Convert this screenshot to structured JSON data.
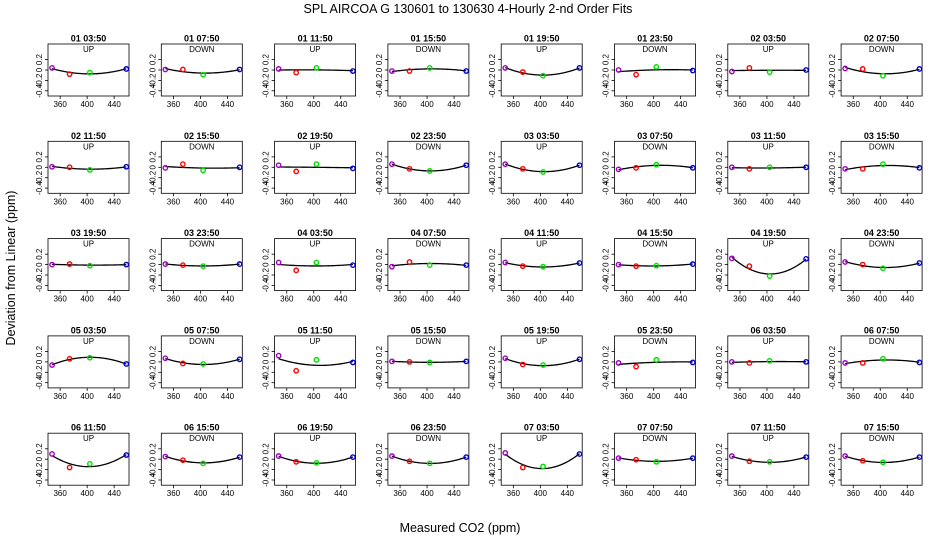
{
  "header": {
    "title": "SPL   AIRCOA G   130601 to 130630   4-Hourly 2-nd Order Fits"
  },
  "chart_data": {
    "type": "scatter",
    "xlabel": "Measured CO2 (ppm)",
    "ylabel": "Deviation from Linear (ppm)",
    "xlim": [
      342,
      462
    ],
    "ylim": [
      -0.5,
      0.5
    ],
    "xticks": [
      360,
      400,
      440
    ],
    "yticks": [
      -0.4,
      -0.2,
      0,
      0.2
    ],
    "grid": false,
    "point_colors": [
      "#a000c0",
      "#ff0000",
      "#00dd00",
      "#0000cc"
    ],
    "point_x": [
      348,
      374,
      404,
      458
    ],
    "panels": [
      {
        "title": "01 03:50",
        "mode": "UP",
        "points": [
          0.04,
          -0.08,
          -0.05,
          0.02
        ]
      },
      {
        "title": "01 07:50",
        "mode": "DOWN",
        "points": [
          0.01,
          0.01,
          -0.09,
          0.01
        ]
      },
      {
        "title": "01 11:50",
        "mode": "UP",
        "points": [
          0.02,
          -0.05,
          0.04,
          -0.02
        ]
      },
      {
        "title": "01 15:50",
        "mode": "DOWN",
        "points": [
          -0.02,
          -0.02,
          0.04,
          -0.02
        ]
      },
      {
        "title": "01 19:50",
        "mode": "UP",
        "points": [
          0.04,
          -0.04,
          -0.11,
          0.04
        ]
      },
      {
        "title": "01 23:50",
        "mode": "DOWN",
        "points": [
          0.0,
          -0.09,
          0.06,
          -0.01
        ]
      },
      {
        "title": "02 03:50",
        "mode": "UP",
        "points": [
          -0.03,
          0.04,
          -0.04,
          0.0
        ]
      },
      {
        "title": "02 07:50",
        "mode": "DOWN",
        "points": [
          0.03,
          0.02,
          -0.11,
          0.02
        ]
      },
      {
        "title": "02 11:50",
        "mode": "UP",
        "points": [
          0.01,
          0.0,
          -0.05,
          0.01
        ]
      },
      {
        "title": "02 15:50",
        "mode": "DOWN",
        "points": [
          -0.01,
          0.06,
          -0.06,
          0.0
        ]
      },
      {
        "title": "02 19:50",
        "mode": "UP",
        "points": [
          0.04,
          -0.08,
          0.06,
          -0.02
        ]
      },
      {
        "title": "02 23:50",
        "mode": "DOWN",
        "points": [
          0.06,
          -0.03,
          -0.07,
          0.04
        ]
      },
      {
        "title": "03 03:50",
        "mode": "UP",
        "points": [
          0.06,
          -0.03,
          -0.09,
          0.04
        ]
      },
      {
        "title": "03 07:50",
        "mode": "DOWN",
        "points": [
          -0.04,
          -0.01,
          0.05,
          -0.01
        ]
      },
      {
        "title": "03 11:50",
        "mode": "UP",
        "points": [
          0.0,
          -0.03,
          0.0,
          0.0
        ]
      },
      {
        "title": "03 15:50",
        "mode": "DOWN",
        "points": [
          -0.03,
          -0.03,
          0.06,
          -0.01
        ]
      },
      {
        "title": "03 19:50",
        "mode": "UP",
        "points": [
          0.0,
          0.01,
          -0.02,
          0.0
        ]
      },
      {
        "title": "03 23:50",
        "mode": "DOWN",
        "points": [
          0.01,
          -0.01,
          -0.03,
          0.01
        ]
      },
      {
        "title": "04 03:50",
        "mode": "UP",
        "points": [
          0.04,
          -0.11,
          0.04,
          -0.01
        ]
      },
      {
        "title": "04 07:50",
        "mode": "DOWN",
        "points": [
          -0.04,
          0.05,
          -0.01,
          -0.01
        ]
      },
      {
        "title": "04 11:50",
        "mode": "UP",
        "points": [
          0.04,
          -0.03,
          -0.04,
          0.03
        ]
      },
      {
        "title": "04 15:50",
        "mode": "DOWN",
        "points": [
          0.0,
          -0.03,
          -0.02,
          0.01
        ]
      },
      {
        "title": "04 19:50",
        "mode": "UP",
        "points": [
          0.12,
          -0.03,
          -0.22,
          0.11
        ]
      },
      {
        "title": "04 23:50",
        "mode": "DOWN",
        "points": [
          0.05,
          0.0,
          -0.07,
          0.03
        ]
      },
      {
        "title": "05 03:50",
        "mode": "UP",
        "points": [
          -0.06,
          0.06,
          0.08,
          -0.04
        ]
      },
      {
        "title": "05 07:50",
        "mode": "DOWN",
        "points": [
          0.07,
          -0.03,
          -0.04,
          0.05
        ]
      },
      {
        "title": "05 11:50",
        "mode": "UP",
        "points": [
          0.12,
          -0.17,
          0.04,
          -0.01
        ]
      },
      {
        "title": "05 15:50",
        "mode": "DOWN",
        "points": [
          0.01,
          0.0,
          -0.01,
          0.01
        ]
      },
      {
        "title": "05 19:50",
        "mode": "UP",
        "points": [
          0.07,
          -0.05,
          -0.06,
          0.05
        ]
      },
      {
        "title": "05 23:50",
        "mode": "DOWN",
        "points": [
          -0.02,
          -0.09,
          0.04,
          -0.01
        ]
      },
      {
        "title": "06 03:50",
        "mode": "UP",
        "points": [
          0.0,
          -0.02,
          0.02,
          0.0
        ]
      },
      {
        "title": "06 07:50",
        "mode": "DOWN",
        "points": [
          -0.02,
          -0.02,
          0.06,
          -0.01
        ]
      },
      {
        "title": "06 11:50",
        "mode": "UP",
        "points": [
          0.1,
          -0.16,
          -0.09,
          0.08
        ]
      },
      {
        "title": "06 15:50",
        "mode": "DOWN",
        "points": [
          0.05,
          -0.02,
          -0.08,
          0.04
        ]
      },
      {
        "title": "06 19:50",
        "mode": "UP",
        "points": [
          0.06,
          -0.05,
          -0.07,
          0.04
        ]
      },
      {
        "title": "06 23:50",
        "mode": "DOWN",
        "points": [
          0.06,
          -0.04,
          -0.08,
          0.04
        ]
      },
      {
        "title": "07 03:50",
        "mode": "UP",
        "points": [
          0.12,
          -0.16,
          -0.14,
          0.1
        ]
      },
      {
        "title": "07 07:50",
        "mode": "DOWN",
        "points": [
          0.02,
          -0.01,
          -0.05,
          0.02
        ]
      },
      {
        "title": "07 11:50",
        "mode": "UP",
        "points": [
          0.06,
          -0.04,
          -0.05,
          0.04
        ]
      },
      {
        "title": "07 15:50",
        "mode": "DOWN",
        "points": [
          0.06,
          -0.03,
          -0.06,
          0.04
        ]
      }
    ]
  }
}
